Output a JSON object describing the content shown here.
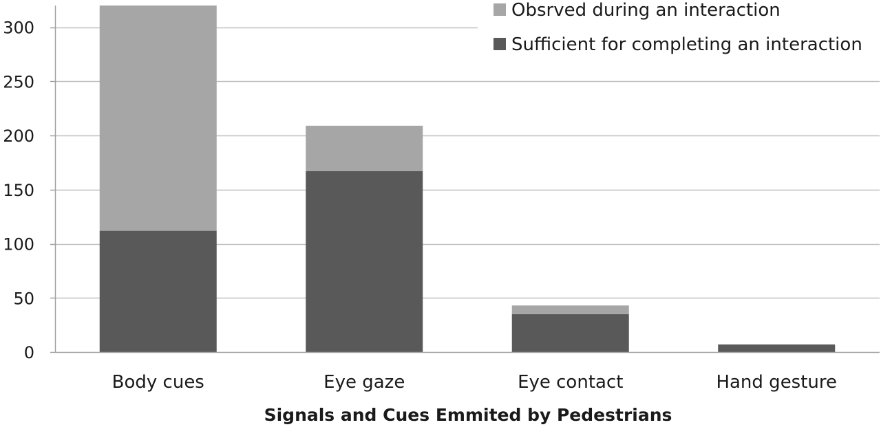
{
  "chart_data": {
    "type": "bar",
    "stacked": true,
    "categories": [
      "Body cues",
      "Eye gaze",
      "Eye contact",
      "Hand gesture"
    ],
    "series": [
      {
        "name": "Sufficient for completing an interaction",
        "values": [
          112,
          167,
          35,
          7
        ],
        "color": "#595959"
      },
      {
        "name": "Obsrved during an interaction",
        "values": [
          208,
          42,
          8,
          0
        ],
        "color": "#a6a6a6"
      }
    ],
    "legend_order": [
      1,
      0
    ],
    "legend_position": "top-right",
    "xlabel": "Signals and Cues Emmited by Pedestrians",
    "ylabel": "",
    "ylim": [
      0,
      320
    ],
    "yticks": [
      0,
      50,
      100,
      150,
      200,
      250,
      300
    ],
    "grid": true,
    "colors": {
      "grid": "#bfbfbf",
      "axis": "#a0a0a0"
    }
  }
}
